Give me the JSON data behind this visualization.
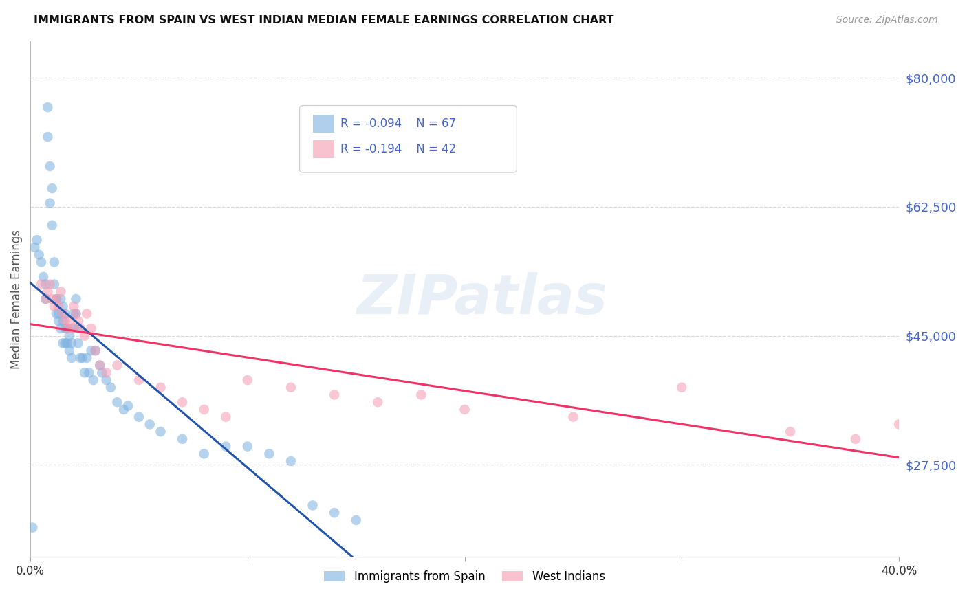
{
  "title": "IMMIGRANTS FROM SPAIN VS WEST INDIAN MEDIAN FEMALE EARNINGS CORRELATION CHART",
  "source": "Source: ZipAtlas.com",
  "ylabel": "Median Female Earnings",
  "xlim": [
    0,
    0.4
  ],
  "ylim": [
    15000,
    85000
  ],
  "ytick_positions": [
    27500,
    45000,
    62500,
    80000
  ],
  "ytick_labels": [
    "$27,500",
    "$45,000",
    "$62,500",
    "$80,000"
  ],
  "xtick_positions": [
    0.0,
    0.1,
    0.2,
    0.3,
    0.4
  ],
  "xtick_labels": [
    "0.0%",
    "",
    "",
    "",
    "40.0%"
  ],
  "background_color": "#ffffff",
  "grid_color": "#d0d0d0",
  "watermark": "ZIPatlas",
  "legend_r1": "-0.094",
  "legend_n1": "67",
  "legend_r2": "-0.194",
  "legend_n2": "42",
  "blue_color": "#7ab0e0",
  "pink_color": "#f59ab0",
  "line_blue": "#2255aa",
  "line_pink": "#ee3366",
  "dash_blue": "#8899cc",
  "axis_color": "#4466cc",
  "spain_x": [
    0.001,
    0.002,
    0.003,
    0.004,
    0.005,
    0.006,
    0.007,
    0.007,
    0.008,
    0.008,
    0.009,
    0.009,
    0.01,
    0.01,
    0.011,
    0.011,
    0.012,
    0.012,
    0.013,
    0.013,
    0.014,
    0.014,
    0.015,
    0.015,
    0.015,
    0.016,
    0.016,
    0.016,
    0.017,
    0.017,
    0.018,
    0.018,
    0.019,
    0.019,
    0.02,
    0.02,
    0.021,
    0.021,
    0.022,
    0.022,
    0.023,
    0.024,
    0.025,
    0.026,
    0.027,
    0.028,
    0.029,
    0.03,
    0.032,
    0.033,
    0.035,
    0.037,
    0.04,
    0.043,
    0.045,
    0.05,
    0.055,
    0.06,
    0.07,
    0.08,
    0.09,
    0.1,
    0.11,
    0.12,
    0.13,
    0.14,
    0.15
  ],
  "spain_y": [
    19000,
    57000,
    58000,
    56000,
    55000,
    53000,
    50000,
    52000,
    72000,
    76000,
    68000,
    63000,
    65000,
    60000,
    55000,
    52000,
    50000,
    48000,
    48000,
    47000,
    46000,
    50000,
    49000,
    47000,
    44000,
    48000,
    46000,
    44000,
    46000,
    44000,
    45000,
    43000,
    44000,
    42000,
    48000,
    46000,
    50000,
    48000,
    46000,
    44000,
    42000,
    42000,
    40000,
    42000,
    40000,
    43000,
    39000,
    43000,
    41000,
    40000,
    39000,
    38000,
    36000,
    35000,
    35500,
    34000,
    33000,
    32000,
    31000,
    29000,
    30000,
    30000,
    29000,
    28000,
    22000,
    21000,
    20000
  ],
  "westindian_x": [
    0.005,
    0.007,
    0.008,
    0.009,
    0.01,
    0.011,
    0.012,
    0.013,
    0.014,
    0.015,
    0.016,
    0.017,
    0.018,
    0.019,
    0.02,
    0.021,
    0.022,
    0.023,
    0.025,
    0.026,
    0.028,
    0.03,
    0.032,
    0.035,
    0.04,
    0.05,
    0.06,
    0.07,
    0.08,
    0.09,
    0.1,
    0.12,
    0.14,
    0.16,
    0.18,
    0.2,
    0.25,
    0.3,
    0.35,
    0.38,
    0.4,
    0.41
  ],
  "westindian_y": [
    52000,
    50000,
    51000,
    52000,
    50000,
    49000,
    50000,
    49000,
    51000,
    48000,
    47000,
    46000,
    47000,
    46000,
    49000,
    48000,
    47000,
    46000,
    45000,
    48000,
    46000,
    43000,
    41000,
    40000,
    41000,
    39000,
    38000,
    36000,
    35000,
    34000,
    39000,
    38000,
    37000,
    36000,
    37000,
    35000,
    34000,
    38000,
    32000,
    31000,
    33000,
    30000
  ]
}
